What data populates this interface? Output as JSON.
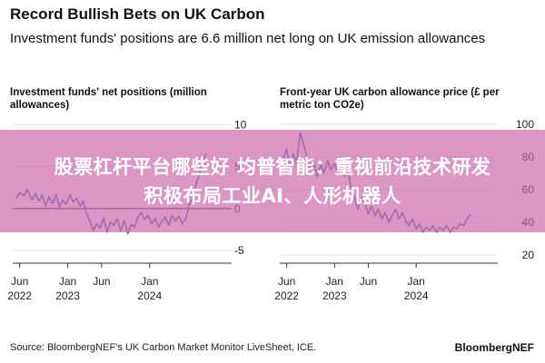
{
  "header": {
    "title": "Record Bullish Bets on UK Carbon",
    "subtitle": "Investment funds' positions are 6.6 million net long on UK emission allowances"
  },
  "footer": {
    "source": "Source: BloombergNEF’s UK Carbon Market Monitor LiveSheet, ICE.",
    "brand": "BloombergNEF"
  },
  "banner": {
    "line1": "股票杠杆平台哪些好 均普智能：重视前沿技术研发",
    "line2": "积极布局工业AI、人形机器人"
  },
  "colors": {
    "line": "#3a78c4",
    "axis": "#333333",
    "grid": "#d8d8d8",
    "banner": "#cd69aa"
  },
  "chart_data": [
    {
      "type": "line",
      "title": "Investment funds' net positions (million allowances)",
      "yticks": [
        -5,
        0,
        5,
        10
      ],
      "ylim": [
        -6.5,
        11
      ],
      "xlim": [
        "2022-05-01",
        "2024-12-31"
      ],
      "xticks": [
        {
          "date": "2022-06-01",
          "line1": "Jun",
          "line2": "2022"
        },
        {
          "date": "2023-01-01",
          "line1": "Jan",
          "line2": "2023"
        },
        {
          "date": "2023-06-01",
          "line1": "Jun",
          "line2": ""
        },
        {
          "date": "2024-01-01",
          "line1": "Jan",
          "line2": "2024"
        }
      ],
      "series": [
        {
          "x": [
            "2022-05-15",
            "2022-06-01",
            "2022-06-20",
            "2022-07-05",
            "2022-07-25",
            "2022-08-10",
            "2022-08-25",
            "2022-09-10",
            "2022-09-25",
            "2022-10-10",
            "2022-10-25",
            "2022-11-10",
            "2022-11-25",
            "2022-12-10",
            "2022-12-25",
            "2023-01-10",
            "2023-01-25",
            "2023-02-10",
            "2023-02-25",
            "2023-03-10",
            "2023-03-25",
            "2023-04-10",
            "2023-04-25",
            "2023-05-10",
            "2023-05-25",
            "2023-06-10",
            "2023-06-25",
            "2023-07-10",
            "2023-07-25",
            "2023-08-10",
            "2023-08-25",
            "2023-09-10",
            "2023-09-25",
            "2023-10-10",
            "2023-10-25",
            "2023-11-10",
            "2023-11-25",
            "2023-12-10",
            "2023-12-25",
            "2024-01-10",
            "2024-01-25",
            "2024-02-10",
            "2024-02-25",
            "2024-03-10",
            "2024-03-25",
            "2024-04-10",
            "2024-04-25",
            "2024-05-10",
            "2024-05-25",
            "2024-06-10",
            "2024-06-25",
            "2024-07-10",
            "2024-07-25",
            "2024-08-10",
            "2024-08-25",
            "2024-09-10"
          ],
          "values": [
            1.2,
            1.9,
            1.5,
            2.3,
            1.0,
            1.8,
            0.9,
            1.6,
            0.3,
            1.4,
            0.6,
            1.7,
            0.2,
            1.0,
            0.5,
            1.6,
            0.8,
            1.2,
            0.3,
            0.9,
            -0.5,
            -1.5,
            -2.6,
            -1.8,
            -2.3,
            -1.1,
            -2.8,
            -1.6,
            -2.0,
            -1.2,
            -2.7,
            -1.4,
            -3.0,
            -1.9,
            -2.2,
            -1.0,
            -0.5,
            -1.3,
            -0.8,
            -1.8,
            -1.2,
            -2.2,
            -1.5,
            -1.0,
            -2.0,
            -0.8,
            -1.5,
            -0.9,
            -1.8,
            -1.2,
            0.5,
            1.2,
            2.8,
            4.2,
            5.8,
            6.6
          ]
        }
      ]
    },
    {
      "type": "line",
      "title": "Front-year UK carbon allowance price (£ per metric ton CO2e)",
      "yticks": [
        20,
        40,
        60,
        80,
        100
      ],
      "ylim": [
        15,
        105
      ],
      "xlim": [
        "2022-05-01",
        "2024-12-31"
      ],
      "xticks": [
        {
          "date": "2022-06-01",
          "line1": "Jun",
          "line2": "2022"
        },
        {
          "date": "2023-01-01",
          "line1": "Jan",
          "line2": "2023"
        },
        {
          "date": "2023-06-01",
          "line1": "Jun",
          "line2": ""
        },
        {
          "date": "2024-01-01",
          "line1": "Jan",
          "line2": "2024"
        }
      ],
      "series": [
        {
          "x": [
            "2022-05-15",
            "2022-06-01",
            "2022-06-15",
            "2022-07-01",
            "2022-07-15",
            "2022-08-01",
            "2022-08-15",
            "2022-09-01",
            "2022-09-15",
            "2022-10-01",
            "2022-10-15",
            "2022-11-01",
            "2022-11-15",
            "2022-12-01",
            "2022-12-15",
            "2023-01-01",
            "2023-01-15",
            "2023-02-01",
            "2023-02-15",
            "2023-03-01",
            "2023-03-15",
            "2023-04-01",
            "2023-04-15",
            "2023-05-01",
            "2023-05-15",
            "2023-06-01",
            "2023-06-15",
            "2023-07-01",
            "2023-07-15",
            "2023-08-01",
            "2023-08-15",
            "2023-09-01",
            "2023-09-15",
            "2023-10-01",
            "2023-10-15",
            "2023-11-01",
            "2023-11-15",
            "2023-12-01",
            "2023-12-15",
            "2024-01-01",
            "2024-01-15",
            "2024-02-01",
            "2024-02-15",
            "2024-03-01",
            "2024-03-15",
            "2024-04-01",
            "2024-04-15",
            "2024-05-01",
            "2024-05-15",
            "2024-06-01",
            "2024-06-15",
            "2024-07-01",
            "2024-07-15",
            "2024-08-01",
            "2024-08-15",
            "2024-09-01"
          ],
          "values": [
            78,
            85,
            72,
            82,
            76,
            95,
            88,
            79,
            72,
            76,
            68,
            75,
            70,
            78,
            72,
            76,
            70,
            74,
            68,
            72,
            62,
            55,
            48,
            55,
            52,
            45,
            50,
            44,
            48,
            42,
            46,
            40,
            44,
            48,
            42,
            46,
            41,
            38,
            42,
            36,
            39,
            34,
            37,
            35,
            38,
            34,
            37,
            35,
            38,
            34,
            37,
            36,
            39,
            38,
            42,
            45
          ]
        }
      ]
    }
  ]
}
